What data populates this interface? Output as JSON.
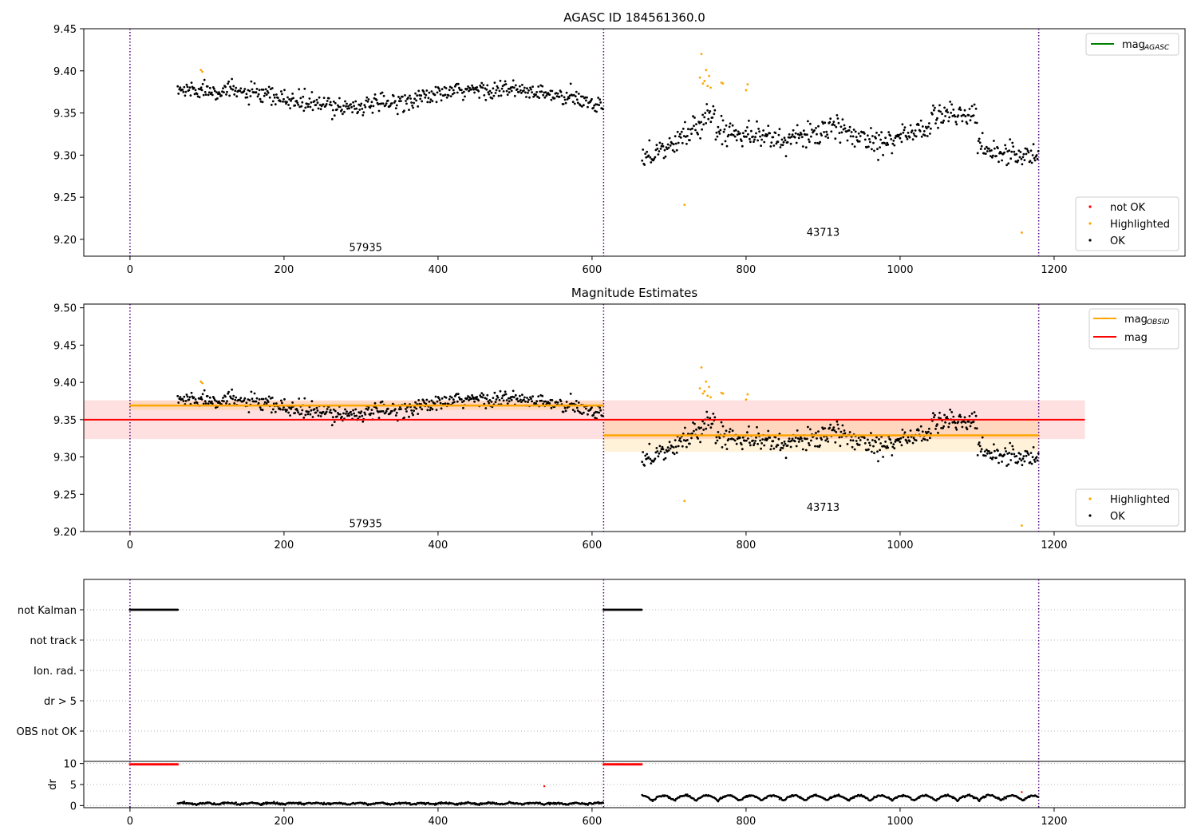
{
  "chart_data": [
    {
      "type": "scatter",
      "title": "AGASC ID 184561360.0",
      "xlim": [
        -60,
        1370
      ],
      "ylim": [
        9.18,
        9.45
      ],
      "xticks": [
        0,
        200,
        400,
        600,
        800,
        1000,
        1200
      ],
      "yticks": [
        9.2,
        9.25,
        9.3,
        9.35,
        9.4,
        9.45
      ],
      "ytick_labels": [
        "9.20",
        "9.25",
        "9.30",
        "9.35",
        "9.40",
        "9.45"
      ],
      "obs_boundaries": [
        0,
        615,
        1180
      ],
      "obsid_labels": [
        {
          "text": "57935",
          "x": 306,
          "y": 9.19
        },
        {
          "text": "43713",
          "x": 900,
          "y": 9.208
        }
      ],
      "legend_top": {
        "placement": "upper right",
        "entries": [
          {
            "label": "mag",
            "sub": "AGASC",
            "color": "#008000"
          }
        ]
      },
      "legend_bottom": {
        "placement": "lower right",
        "entries": [
          {
            "label": "not OK",
            "color": "#ff0000"
          },
          {
            "label": "Highlighted",
            "color": "#ffa500"
          },
          {
            "label": "OK",
            "color": "#000000"
          }
        ]
      },
      "segments": [
        {
          "x_start": 62,
          "x_end": 615,
          "y_mean": 9.368,
          "y_spread": 0.009
        },
        {
          "x_start": 665,
          "x_end": 1180,
          "y_mean": 9.328,
          "y_spread": 0.012
        }
      ],
      "highlighted_points": [
        [
          92,
          9.401
        ],
        [
          94,
          9.399
        ],
        [
          720,
          9.241
        ],
        [
          740,
          9.392
        ],
        [
          742,
          9.42
        ],
        [
          744,
          9.385
        ],
        [
          746,
          9.388
        ],
        [
          748,
          9.401
        ],
        [
          750,
          9.382
        ],
        [
          752,
          9.394
        ],
        [
          754,
          9.38
        ],
        [
          768,
          9.386
        ],
        [
          770,
          9.385
        ],
        [
          800,
          9.377
        ],
        [
          802,
          9.384
        ],
        [
          1158,
          9.208
        ]
      ]
    },
    {
      "type": "scatter",
      "title": "Magnitude Estimates",
      "xlim": [
        -60,
        1370
      ],
      "ylim": [
        9.2,
        9.505
      ],
      "xticks": [
        0,
        200,
        400,
        600,
        800,
        1000,
        1200
      ],
      "yticks": [
        9.2,
        9.25,
        9.3,
        9.35,
        9.4,
        9.45,
        9.5
      ],
      "ytick_labels": [
        "9.20",
        "9.25",
        "9.30",
        "9.35",
        "9.40",
        "9.45",
        "9.50"
      ],
      "obs_boundaries": [
        0,
        615,
        1180
      ],
      "obsid_labels": [
        {
          "text": "57935",
          "x": 306,
          "y": 9.21
        },
        {
          "text": "43713",
          "x": 900,
          "y": 9.232
        }
      ],
      "legend_top": {
        "placement": "upper right",
        "entries": [
          {
            "label": "mag",
            "sub": "OBSID",
            "color": "#ffa500"
          },
          {
            "label": "mag",
            "sub": "",
            "color": "#ff0000"
          }
        ]
      },
      "legend_bottom": {
        "placement": "lower right",
        "entries": [
          {
            "label": "Highlighted",
            "color": "#ffa500"
          },
          {
            "label": "OK",
            "color": "#000000"
          }
        ]
      },
      "mag": {
        "value": 9.35,
        "band": [
          9.324,
          9.376
        ],
        "x_range": [
          -60,
          1240
        ]
      },
      "mag_obsid": [
        {
          "x_range": [
            0,
            615
          ],
          "value": 9.369,
          "band": [
            9.363,
            9.375
          ]
        },
        {
          "x_range": [
            615,
            1180
          ],
          "value": 9.329,
          "band": [
            9.307,
            9.351
          ]
        }
      ]
    },
    {
      "type": "scatter",
      "title": "",
      "flags_ylabels": [
        "not Kalman",
        "not track",
        "Ion. rad.",
        "dr > 5",
        "OBS not OK"
      ],
      "flag_spans": [
        {
          "flag": "not Kalman",
          "x_range": [
            0,
            62
          ]
        },
        {
          "flag": "not Kalman",
          "x_range": [
            615,
            665
          ]
        }
      ],
      "dr_ylabel": "dr",
      "dr_yticks": [
        0,
        5,
        10
      ],
      "dr_ylim": [
        -0.5,
        10.5
      ],
      "dr_red_spans": [
        {
          "x_range": [
            0,
            62
          ],
          "y": 9.8
        },
        {
          "x_range": [
            615,
            665
          ],
          "y": 9.8
        }
      ],
      "dr_red_points": [
        [
          538,
          4.6
        ],
        [
          1158,
          3.2
        ]
      ],
      "xticks": [
        0,
        200,
        400,
        600,
        800,
        1000,
        1200
      ],
      "obs_boundaries": [
        0,
        615,
        1180
      ]
    }
  ]
}
